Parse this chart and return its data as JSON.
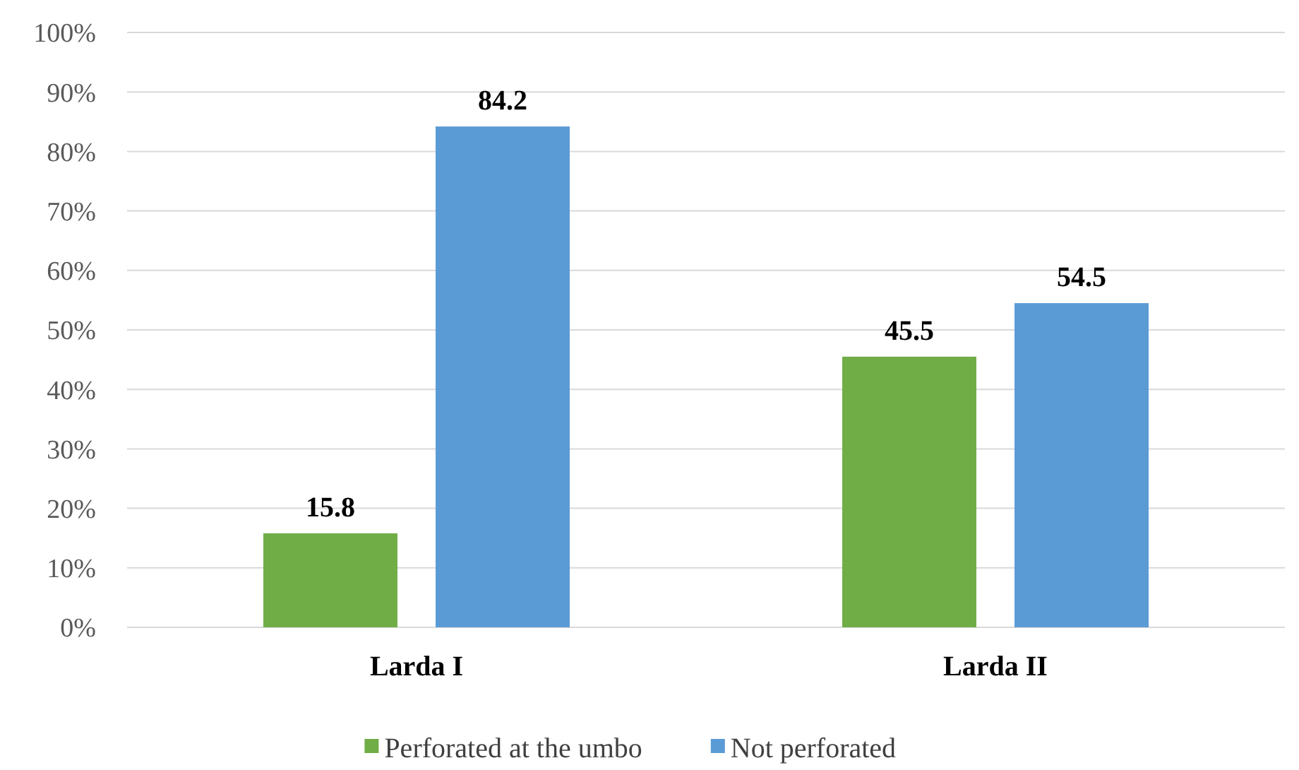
{
  "chart_data": {
    "type": "bar",
    "categories": [
      "Larda I",
      "Larda II"
    ],
    "series": [
      {
        "name": "Perforated at the umbo",
        "color": "#70ad47",
        "values": [
          15.8,
          45.5
        ]
      },
      {
        "name": "Not perforated",
        "color": "#5b9bd5",
        "values": [
          84.2,
          54.5
        ]
      }
    ],
    "ylim": [
      0,
      100
    ],
    "yticks": [
      {
        "value": 0,
        "label": "0%"
      },
      {
        "value": 10,
        "label": "10%"
      },
      {
        "value": 20,
        "label": "20%"
      },
      {
        "value": 30,
        "label": "30%"
      },
      {
        "value": 40,
        "label": "40%"
      },
      {
        "value": 50,
        "label": "50%"
      },
      {
        "value": 60,
        "label": "60%"
      },
      {
        "value": 70,
        "label": "70%"
      },
      {
        "value": 80,
        "label": "80%"
      },
      {
        "value": 90,
        "label": "90%"
      },
      {
        "value": 100,
        "label": "100%"
      }
    ],
    "grid": "y",
    "legend": "bottom",
    "data_labels": true
  }
}
